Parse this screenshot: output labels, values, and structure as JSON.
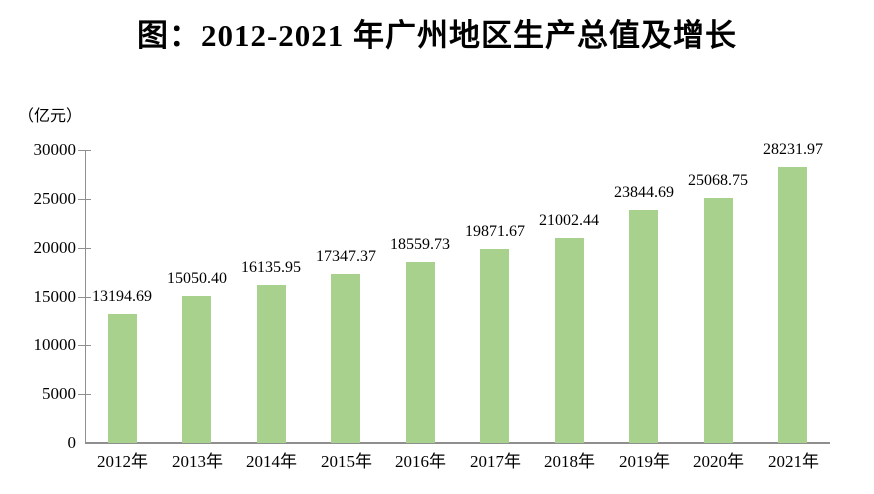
{
  "figure": {
    "title": "图：2012-2021 年广州地区生产总值及增长",
    "unit_label": "（亿元）"
  },
  "chart_data": {
    "type": "bar",
    "title": "图：2012-2021 年广州地区生产总值及增长",
    "unit_label": "（亿元）",
    "categories": [
      "2012年",
      "2013年",
      "2014年",
      "2015年",
      "2016年",
      "2017年",
      "2018年",
      "2019年",
      "2020年",
      "2021年"
    ],
    "values": [
      13194.69,
      15050.4,
      16135.95,
      17347.37,
      18559.73,
      19871.67,
      21002.44,
      23844.69,
      25068.75,
      28231.97
    ],
    "value_labels": [
      "13194.69",
      "15050.40",
      "16135.95",
      "17347.37",
      "18559.73",
      "19871.67",
      "21002.44",
      "23844.69",
      "25068.75",
      "28231.97"
    ],
    "xlabel": "",
    "ylabel": "（亿元）",
    "ylim": [
      0,
      30000
    ],
    "yticks": [
      0,
      5000,
      10000,
      15000,
      20000,
      25000,
      30000
    ],
    "ytick_labels": [
      "0",
      "5000",
      "10000",
      "15000",
      "20000",
      "25000",
      "30000"
    ],
    "grid": false,
    "legend": "none",
    "bar_color": "#a9d18e",
    "axis_color": "#8f8f8f",
    "text_color": "#000000"
  }
}
